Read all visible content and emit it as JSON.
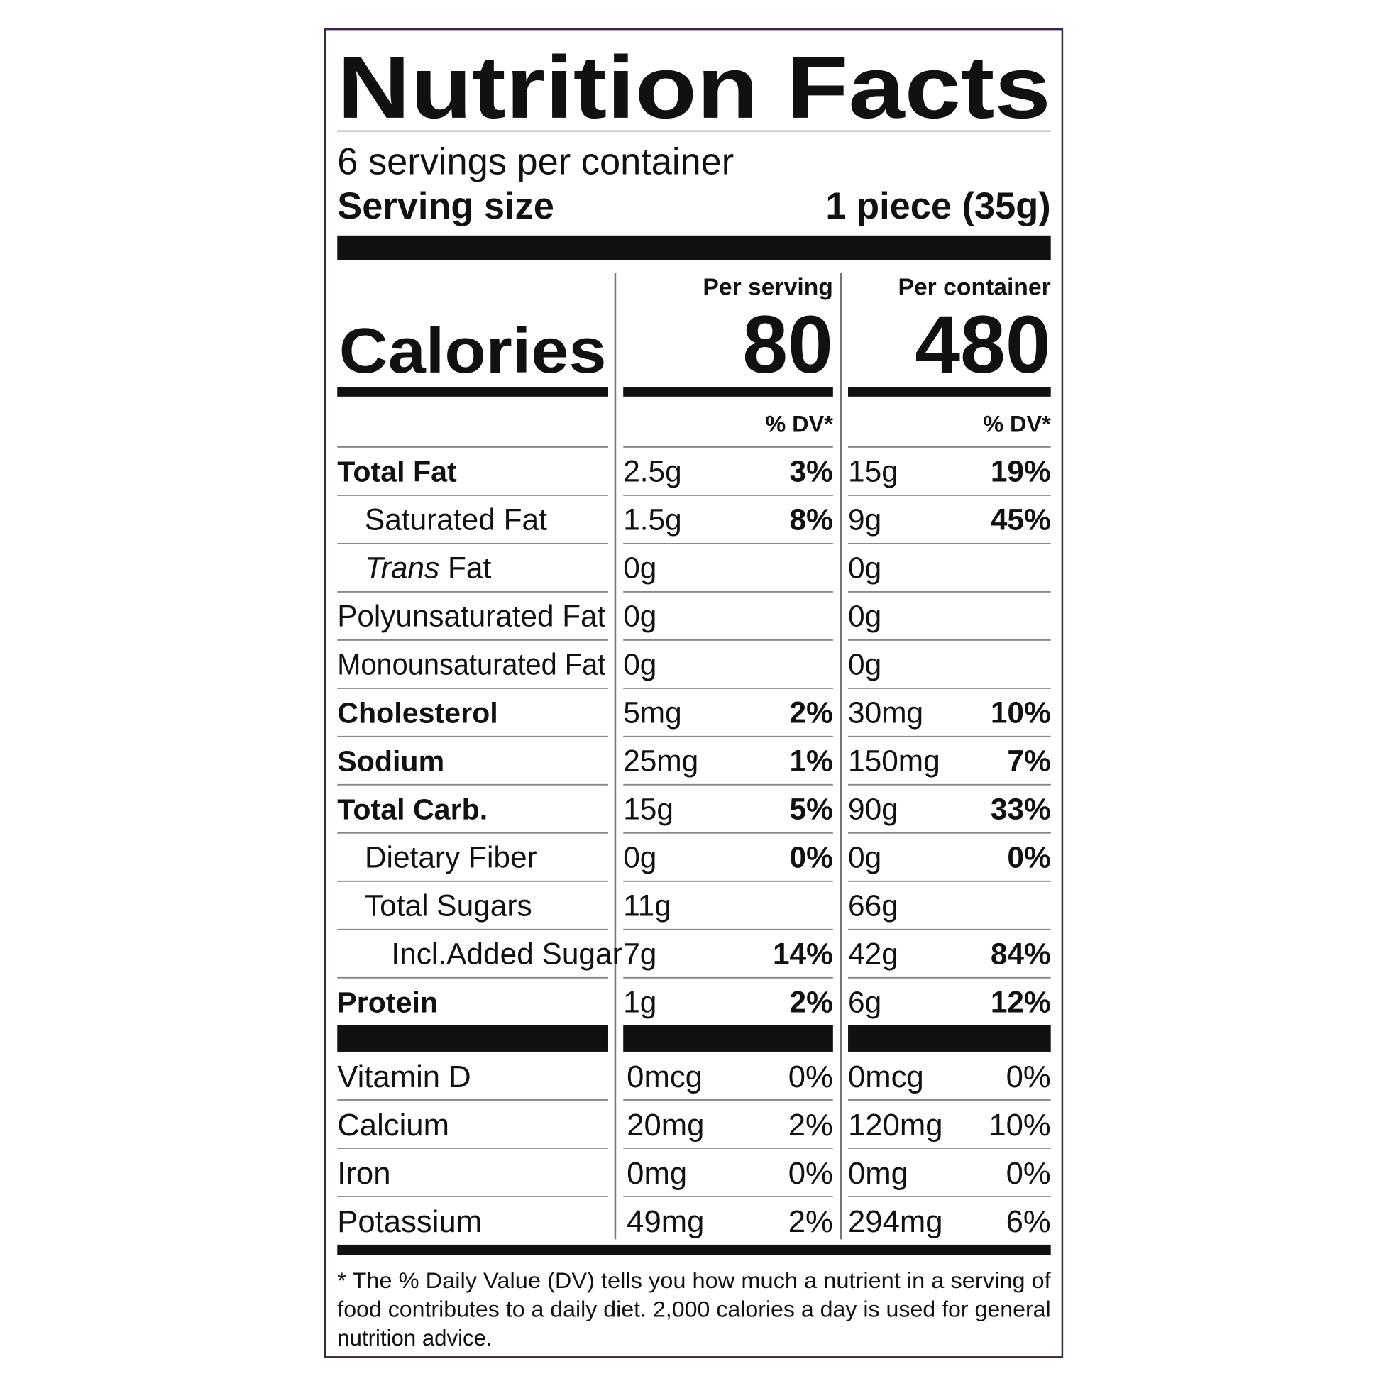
{
  "title": "Nutrition Facts",
  "servings": "6 servings per container",
  "serving_size": {
    "label": "Serving size",
    "value": "1 piece (35g)"
  },
  "columns": [
    "Per serving",
    "Per container"
  ],
  "calories": {
    "label": "Calories",
    "values": [
      "80",
      "480"
    ]
  },
  "dv_header": "% DV*",
  "rows": [
    {
      "label": "Total Fat",
      "bold": true,
      "indent": 0,
      "serving": [
        "2.5g",
        "3%"
      ],
      "container": [
        "15g",
        "19%"
      ]
    },
    {
      "label": "Saturated Fat",
      "bold": false,
      "indent": 1,
      "serving": [
        "1.5g",
        "8%"
      ],
      "container": [
        "9g",
        "45%"
      ]
    },
    {
      "label_italic": "Trans",
      "label": " Fat",
      "bold": false,
      "indent": 1,
      "serving": [
        "0g",
        null
      ],
      "container": [
        "0g",
        null
      ]
    },
    {
      "label": "Polyunsaturated Fat",
      "bold": false,
      "indent": 0,
      "serving": [
        "0g",
        null
      ],
      "container": [
        "0g",
        null
      ]
    },
    {
      "label": "Monounsaturated Fat",
      "bold": false,
      "indent": 0,
      "serving": [
        "0g",
        null
      ],
      "container": [
        "0g",
        null
      ]
    },
    {
      "label": "Cholesterol",
      "bold": true,
      "indent": 0,
      "serving": [
        "5mg",
        "2%"
      ],
      "container": [
        "30mg",
        "10%"
      ]
    },
    {
      "label": "Sodium",
      "bold": true,
      "indent": 0,
      "serving": [
        "25mg",
        "1%"
      ],
      "container": [
        "150mg",
        "7%"
      ]
    },
    {
      "label": "Total Carb.",
      "bold": true,
      "indent": 0,
      "serving": [
        "15g",
        "5%"
      ],
      "container": [
        "90g",
        "33%"
      ]
    },
    {
      "label": "Dietary Fiber",
      "bold": false,
      "indent": 1,
      "serving": [
        "0g",
        "0%"
      ],
      "container": [
        "0g",
        "0%"
      ]
    },
    {
      "label": "Total Sugars",
      "bold": false,
      "indent": 1,
      "serving": [
        "11g",
        null
      ],
      "container": [
        "66g",
        null
      ]
    },
    {
      "label": "Incl.Added Sugar",
      "bold": false,
      "indent": 2,
      "serving": [
        "7g",
        "14%"
      ],
      "container": [
        "42g",
        "84%"
      ]
    },
    {
      "label": "Protein",
      "bold": true,
      "indent": 0,
      "serving": [
        "1g",
        "2%"
      ],
      "container": [
        "6g",
        "12%"
      ]
    }
  ],
  "vitamins": [
    {
      "label": "Vitamin D",
      "serving": [
        "0mcg",
        "0%"
      ],
      "container": [
        "0mcg",
        "0%"
      ]
    },
    {
      "label": "Calcium",
      "serving": [
        "20mg",
        "2%"
      ],
      "container": [
        "120mg",
        "10%"
      ]
    },
    {
      "label": "Iron",
      "serving": [
        "0mg",
        "0%"
      ],
      "container": [
        "0mg",
        "0%"
      ]
    },
    {
      "label": "Potassium",
      "serving": [
        "49mg",
        "2%"
      ],
      "container": [
        "294mg",
        "6%"
      ]
    }
  ],
  "footnote_lines": [
    "* The % Daily Value (DV) tells you how much a nutrient in a serving of",
    "food contributes to a daily diet. 2,000 calories a day is used for general",
    "nutrition advice."
  ]
}
